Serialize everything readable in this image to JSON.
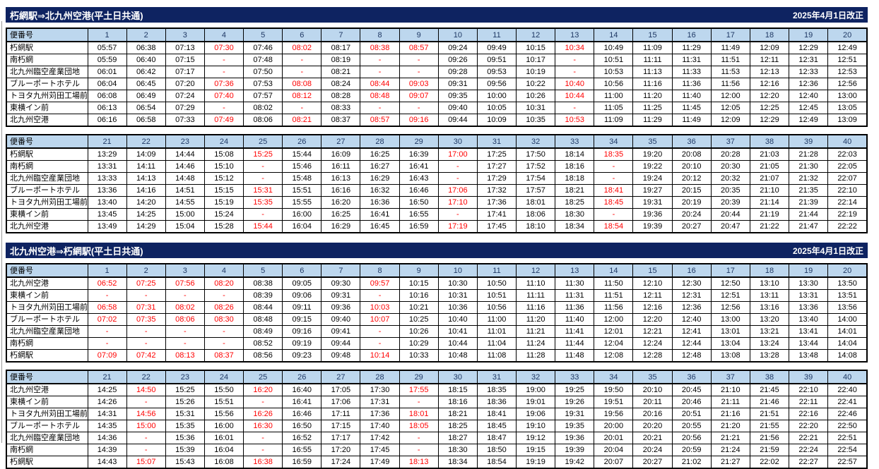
{
  "labels": {
    "trip_no_header": "便番号"
  },
  "sections": [
    {
      "title": "朽網駅⇒北九州空港(平土日共通)",
      "revision": "2025年4月1日改正",
      "tables": [
        {
          "columns": [
            1,
            2,
            3,
            4,
            5,
            6,
            7,
            8,
            9,
            10,
            11,
            12,
            13,
            14,
            15,
            16,
            17,
            18,
            19,
            20
          ],
          "red_columns": [
            4,
            6,
            8,
            9,
            13
          ],
          "rows": [
            {
              "stop": "朽網駅",
              "times": [
                "05:57",
                "06:38",
                "07:13",
                "07:30",
                "07:46",
                "08:02",
                "08:17",
                "08:38",
                "08:57",
                "09:24",
                "09:49",
                "10:15",
                "10:34",
                "10:49",
                "11:09",
                "11:29",
                "11:49",
                "12:09",
                "12:29",
                "12:49"
              ]
            },
            {
              "stop": "南朽網",
              "times": [
                "05:59",
                "06:40",
                "07:15",
                "-",
                "07:48",
                "-",
                "08:19",
                "-",
                "-",
                "09:26",
                "09:51",
                "10:17",
                "-",
                "10:51",
                "11:11",
                "11:31",
                "11:51",
                "12:11",
                "12:31",
                "12:51"
              ]
            },
            {
              "stop": "北九州臨空産業団地",
              "times": [
                "06:01",
                "06:42",
                "07:17",
                "-",
                "07:50",
                "-",
                "08:21",
                "-",
                "-",
                "09:28",
                "09:53",
                "10:19",
                "-",
                "10:53",
                "11:13",
                "11:33",
                "11:53",
                "12:13",
                "12:33",
                "12:53"
              ]
            },
            {
              "stop": "ブルーポートホテル",
              "times": [
                "06:04",
                "06:45",
                "07:20",
                "07:36",
                "07:53",
                "08:08",
                "08:24",
                "08:44",
                "09:03",
                "09:31",
                "09:56",
                "10:22",
                "10:40",
                "10:56",
                "11:16",
                "11:36",
                "11:56",
                "12:16",
                "12:36",
                "12:56"
              ]
            },
            {
              "stop": "トヨタ九州苅田工場前",
              "times": [
                "06:08",
                "06:49",
                "07:24",
                "07:40",
                "07:57",
                "08:12",
                "08:28",
                "08:48",
                "09:07",
                "09:35",
                "10:00",
                "10:26",
                "10:44",
                "11:00",
                "11:20",
                "11:40",
                "12:00",
                "12:20",
                "12:40",
                "13:00"
              ]
            },
            {
              "stop": "東横イン前",
              "times": [
                "06:13",
                "06:54",
                "07:29",
                "-",
                "08:02",
                "-",
                "08:33",
                "-",
                "-",
                "09:40",
                "10:05",
                "10:31",
                "-",
                "11:05",
                "11:25",
                "11:45",
                "12:05",
                "12:25",
                "12:45",
                "13:05"
              ]
            },
            {
              "stop": "北九州空港",
              "times": [
                "06:16",
                "06:58",
                "07:33",
                "07:49",
                "08:06",
                "08:21",
                "08:37",
                "08:57",
                "09:16",
                "09:44",
                "10:09",
                "10:35",
                "10:53",
                "11:09",
                "11:29",
                "11:49",
                "12:09",
                "12:29",
                "12:49",
                "13:09"
              ]
            }
          ]
        },
        {
          "columns": [
            21,
            22,
            23,
            24,
            25,
            26,
            27,
            28,
            29,
            30,
            31,
            32,
            33,
            34,
            35,
            36,
            37,
            38,
            39,
            40
          ],
          "red_columns": [
            25,
            30,
            34
          ],
          "rows": [
            {
              "stop": "朽網駅",
              "times": [
                "13:29",
                "14:09",
                "14:44",
                "15:08",
                "15:25",
                "15:44",
                "16:09",
                "16:25",
                "16:39",
                "17:00",
                "17:25",
                "17:50",
                "18:14",
                "18:35",
                "19:20",
                "20:08",
                "20:28",
                "21:03",
                "21:28",
                "22:03"
              ]
            },
            {
              "stop": "南朽網",
              "times": [
                "13:31",
                "14:11",
                "14:46",
                "15:10",
                "-",
                "15:46",
                "16:11",
                "16:27",
                "16:41",
                "-",
                "17:27",
                "17:52",
                "18:16",
                "-",
                "19:22",
                "20:10",
                "20:30",
                "21:05",
                "21:30",
                "22:05"
              ]
            },
            {
              "stop": "北九州臨空産業団地",
              "times": [
                "13:33",
                "14:13",
                "14:48",
                "15:12",
                "-",
                "15:48",
                "16:13",
                "16:29",
                "16:43",
                "-",
                "17:29",
                "17:54",
                "18:18",
                "-",
                "19:24",
                "20:12",
                "20:32",
                "21:07",
                "21:32",
                "22:07"
              ]
            },
            {
              "stop": "ブルーポートホテル",
              "times": [
                "13:36",
                "14:16",
                "14:51",
                "15:15",
                "15:31",
                "15:51",
                "16:16",
                "16:32",
                "16:46",
                "17:06",
                "17:32",
                "17:57",
                "18:21",
                "18:41",
                "19:27",
                "20:15",
                "20:35",
                "21:10",
                "21:35",
                "22:10"
              ]
            },
            {
              "stop": "トヨタ九州苅田工場前",
              "times": [
                "13:40",
                "14:20",
                "14:55",
                "15:19",
                "15:35",
                "15:55",
                "16:20",
                "16:36",
                "16:50",
                "17:10",
                "17:36",
                "18:01",
                "18:25",
                "18:45",
                "19:31",
                "20:19",
                "20:39",
                "21:14",
                "21:39",
                "22:14"
              ]
            },
            {
              "stop": "東横イン前",
              "times": [
                "13:45",
                "14:25",
                "15:00",
                "15:24",
                "-",
                "16:00",
                "16:25",
                "16:41",
                "16:55",
                "-",
                "17:41",
                "18:06",
                "18:30",
                "-",
                "19:36",
                "20:24",
                "20:44",
                "21:19",
                "21:44",
                "22:19"
              ]
            },
            {
              "stop": "北九州空港",
              "times": [
                "13:49",
                "14:29",
                "15:04",
                "15:28",
                "15:44",
                "16:04",
                "16:29",
                "16:45",
                "16:59",
                "17:19",
                "17:45",
                "18:10",
                "18:34",
                "18:54",
                "19:39",
                "20:27",
                "20:47",
                "21:22",
                "21:47",
                "22:22"
              ]
            }
          ]
        }
      ]
    },
    {
      "title": "北九州空港⇒朽網駅(平土日共通)",
      "revision": "2025年4月1日改正",
      "tables": [
        {
          "columns": [
            1,
            2,
            3,
            4,
            5,
            6,
            7,
            8,
            9,
            10,
            11,
            12,
            13,
            14,
            15,
            16,
            17,
            18,
            19,
            20
          ],
          "red_columns": [
            1,
            2,
            3,
            4,
            8
          ],
          "rows": [
            {
              "stop": "北九州空港",
              "times": [
                "06:52",
                "07:25",
                "07:56",
                "08:20",
                "08:38",
                "09:05",
                "09:30",
                "09:57",
                "10:15",
                "10:30",
                "10:50",
                "11:10",
                "11:30",
                "11:50",
                "12:10",
                "12:30",
                "12:50",
                "13:10",
                "13:30",
                "13:50"
              ]
            },
            {
              "stop": "東横イン前",
              "times": [
                "-",
                "-",
                "-",
                "-",
                "08:39",
                "09:06",
                "09:31",
                "-",
                "10:16",
                "10:31",
                "10:51",
                "11:11",
                "11:31",
                "11:51",
                "12:11",
                "12:31",
                "12:51",
                "13:11",
                "13:31",
                "13:51"
              ]
            },
            {
              "stop": "トヨタ九州苅田工場前",
              "times": [
                "06:58",
                "07:31",
                "08:02",
                "08:26",
                "08:44",
                "09:11",
                "09:36",
                "10:03",
                "10:21",
                "10:36",
                "10:56",
                "11:16",
                "11:36",
                "11:56",
                "12:16",
                "12:36",
                "12:56",
                "13:16",
                "13:36",
                "13:56"
              ]
            },
            {
              "stop": "ブルーポートホテル",
              "times": [
                "07:02",
                "07:35",
                "08:06",
                "08:30",
                "08:48",
                "09:15",
                "09:40",
                "10:07",
                "10:25",
                "10:40",
                "11:00",
                "11:20",
                "11:40",
                "12:00",
                "12:20",
                "12:40",
                "13:00",
                "13:20",
                "13:40",
                "14:00"
              ]
            },
            {
              "stop": "北九州臨空産業団地",
              "times": [
                "-",
                "-",
                "-",
                "-",
                "08:49",
                "09:16",
                "09:41",
                "-",
                "10:26",
                "10:41",
                "11:01",
                "11:21",
                "11:41",
                "12:01",
                "12:21",
                "12:41",
                "13:01",
                "13:21",
                "13:41",
                "14:01"
              ]
            },
            {
              "stop": "南朽網",
              "times": [
                "-",
                "-",
                "-",
                "-",
                "08:52",
                "09:19",
                "09:44",
                "-",
                "10:29",
                "10:44",
                "11:04",
                "11:24",
                "11:44",
                "12:04",
                "12:24",
                "12:44",
                "13:04",
                "13:24",
                "13:44",
                "14:04"
              ]
            },
            {
              "stop": "朽網駅",
              "times": [
                "07:09",
                "07:42",
                "08:13",
                "08:37",
                "08:56",
                "09:23",
                "09:48",
                "10:14",
                "10:33",
                "10:48",
                "11:08",
                "11:28",
                "11:48",
                "12:08",
                "12:28",
                "12:48",
                "13:08",
                "13:28",
                "13:48",
                "14:08"
              ]
            }
          ]
        },
        {
          "columns": [
            21,
            22,
            23,
            24,
            25,
            26,
            27,
            28,
            29,
            30,
            31,
            32,
            33,
            34,
            35,
            36,
            37,
            38,
            39,
            40
          ],
          "red_columns": [
            22,
            25,
            29
          ],
          "rows": [
            {
              "stop": "北九州空港",
              "times": [
                "14:25",
                "14:50",
                "15:25",
                "15:50",
                "16:20",
                "16:40",
                "17:05",
                "17:30",
                "17:55",
                "18:15",
                "18:35",
                "19:00",
                "19:25",
                "19:50",
                "20:10",
                "20:45",
                "21:10",
                "21:45",
                "22:10",
                "22:40"
              ]
            },
            {
              "stop": "東横イン前",
              "times": [
                "14:26",
                "-",
                "15:26",
                "15:51",
                "-",
                "16:41",
                "17:06",
                "17:31",
                "-",
                "18:16",
                "18:36",
                "19:01",
                "19:26",
                "19:51",
                "20:11",
                "20:46",
                "21:11",
                "21:46",
                "22:11",
                "22:41"
              ]
            },
            {
              "stop": "トヨタ九州苅田工場前",
              "times": [
                "14:31",
                "14:56",
                "15:31",
                "15:56",
                "16:26",
                "16:46",
                "17:11",
                "17:36",
                "18:01",
                "18:21",
                "18:41",
                "19:06",
                "19:31",
                "19:56",
                "20:16",
                "20:51",
                "21:16",
                "21:51",
                "22:16",
                "22:46"
              ]
            },
            {
              "stop": "ブルーポートホテル",
              "times": [
                "14:35",
                "15:00",
                "15:35",
                "16:00",
                "16:30",
                "16:50",
                "17:15",
                "17:40",
                "18:05",
                "18:25",
                "18:45",
                "19:10",
                "19:35",
                "20:00",
                "20:20",
                "20:55",
                "21:20",
                "21:55",
                "22:20",
                "22:50"
              ]
            },
            {
              "stop": "北九州臨空産業団地",
              "times": [
                "14:36",
                "-",
                "15:36",
                "16:01",
                "-",
                "16:52",
                "17:17",
                "17:42",
                "-",
                "18:27",
                "18:47",
                "19:12",
                "19:36",
                "20:01",
                "20:21",
                "20:56",
                "21:21",
                "21:56",
                "22:21",
                "22:51"
              ]
            },
            {
              "stop": "南朽網",
              "times": [
                "14:39",
                "-",
                "15:39",
                "16:04",
                "-",
                "16:55",
                "17:20",
                "17:45",
                "-",
                "18:30",
                "18:50",
                "19:15",
                "19:39",
                "20:04",
                "20:24",
                "20:59",
                "21:24",
                "21:59",
                "22:24",
                "22:54"
              ]
            },
            {
              "stop": "朽網駅",
              "times": [
                "14:43",
                "15:07",
                "15:43",
                "16:08",
                "16:38",
                "16:59",
                "17:24",
                "17:49",
                "18:13",
                "18:34",
                "18:54",
                "19:19",
                "19:42",
                "20:07",
                "20:27",
                "21:02",
                "21:27",
                "22:02",
                "22:27",
                "22:57"
              ]
            }
          ]
        }
      ]
    }
  ],
  "colors": {
    "title_bar_bg": "#0e2361",
    "header_bg": "#bdd7ee",
    "header_text": "#1f3864",
    "red_trip": "#ff0000"
  }
}
